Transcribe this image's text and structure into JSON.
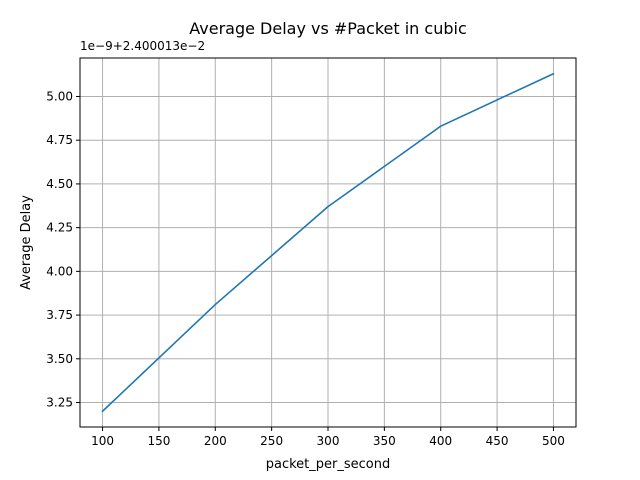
{
  "chart_data": {
    "type": "line",
    "title": "Average Delay vs #Packet in cubic",
    "xlabel": "packet_per_second",
    "ylabel": "Average Delay",
    "y_offset_label": "1e−9+2.400013e−2",
    "x": [
      100,
      200,
      300,
      400,
      500
    ],
    "series": [
      {
        "values": [
          3.2,
          3.81,
          4.37,
          4.83,
          5.13
        ],
        "color": "#1f77b4"
      }
    ],
    "xlim": [
      80,
      520
    ],
    "ylim": [
      3.11,
      5.22
    ],
    "xticks": [
      100,
      150,
      200,
      250,
      300,
      350,
      400,
      450,
      500
    ],
    "xtick_labels": [
      "100",
      "150",
      "200",
      "250",
      "300",
      "350",
      "400",
      "450",
      "500"
    ],
    "yticks": [
      3.25,
      3.5,
      3.75,
      4.0,
      4.25,
      4.5,
      4.75,
      5.0
    ],
    "ytick_labels": [
      "3.25",
      "3.50",
      "3.75",
      "4.00",
      "4.25",
      "4.50",
      "4.75",
      "5.00"
    ],
    "grid": true,
    "grid_color": "#b0b0b0"
  }
}
